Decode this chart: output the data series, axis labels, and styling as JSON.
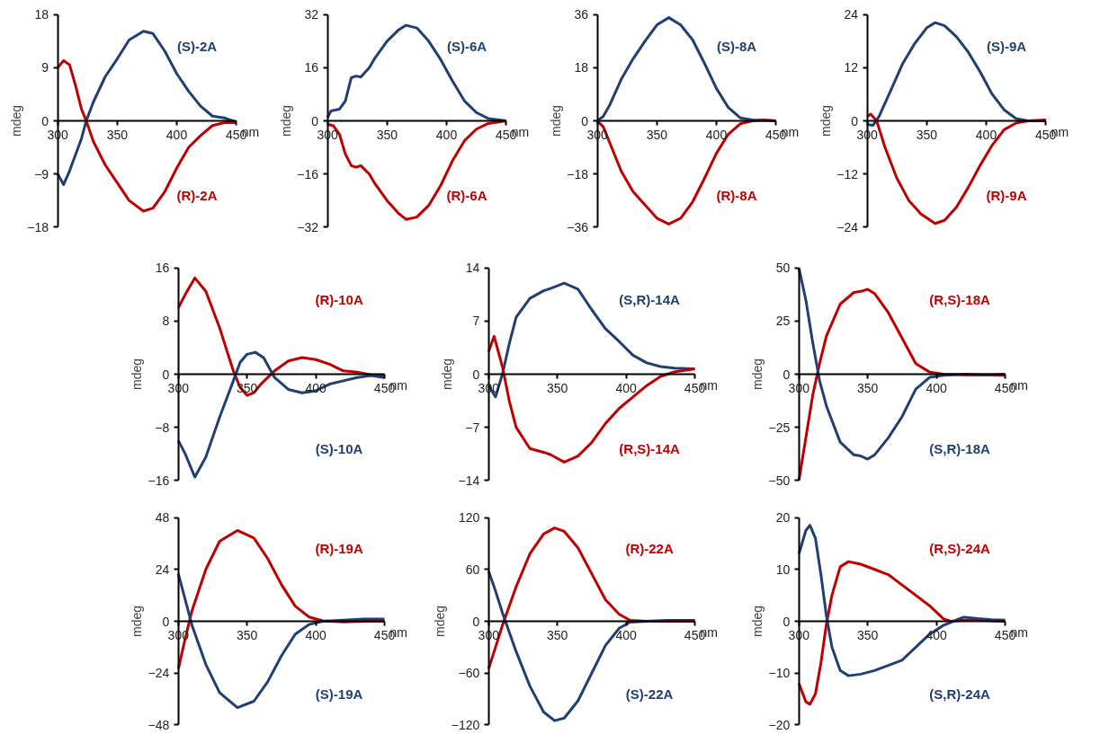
{
  "chart_data": [
    {
      "type": "line",
      "xlabel": "nm",
      "ylabel": "mdeg",
      "xlim": [
        300,
        450
      ],
      "xticks": [
        300,
        350,
        400,
        450
      ],
      "ylim": [
        -18,
        18
      ],
      "yticks": [
        -18,
        -9,
        0,
        9,
        18
      ],
      "series": [
        {
          "name": "(S)-2A",
          "color": "#203f73",
          "x": [
            300,
            305,
            310,
            320,
            324,
            330,
            340,
            350,
            360,
            372,
            380,
            390,
            400,
            410,
            420,
            430,
            440,
            450
          ],
          "values": [
            -9,
            -10.8,
            -8.5,
            -3,
            0,
            3.2,
            7.5,
            10.5,
            13.7,
            15.2,
            14.8,
            11.8,
            8,
            5,
            2.5,
            0.8,
            0.5,
            -0.2
          ]
        },
        {
          "name": "(R)-2A",
          "color": "#c00000",
          "x": [
            300,
            305,
            310,
            315,
            320,
            324,
            330,
            340,
            350,
            360,
            372,
            380,
            390,
            400,
            410,
            420,
            430,
            440,
            450
          ],
          "values": [
            9,
            10.2,
            9.5,
            6,
            2,
            0,
            -3.5,
            -7.5,
            -10.5,
            -13.5,
            -15.3,
            -14.8,
            -12,
            -8,
            -4.5,
            -2.5,
            -0.8,
            -0.3,
            -0.3
          ]
        }
      ]
    },
    {
      "type": "line",
      "xlabel": "nm",
      "ylabel": "mdeg",
      "xlim": [
        300,
        450
      ],
      "xticks": [
        300,
        350,
        400,
        450
      ],
      "ylim": [
        -32,
        32
      ],
      "yticks": [
        -32,
        -16,
        0,
        16,
        32
      ],
      "series": [
        {
          "name": "(S)-6A",
          "color": "#203f73",
          "x": [
            300,
            303,
            310,
            315,
            320,
            324,
            328,
            335,
            340,
            350,
            360,
            366,
            375,
            385,
            395,
            405,
            415,
            425,
            435,
            450
          ],
          "values": [
            1,
            3,
            3.5,
            6,
            13,
            13.5,
            13.2,
            16,
            19,
            24,
            27.5,
            28.8,
            28,
            24,
            18.5,
            12,
            6,
            2.5,
            0.7,
            0
          ]
        },
        {
          "name": "(R)-6A",
          "color": "#c00000",
          "x": [
            300,
            305,
            310,
            315,
            320,
            324,
            328,
            335,
            340,
            350,
            360,
            366,
            375,
            385,
            395,
            405,
            415,
            425,
            435,
            450
          ],
          "values": [
            -1,
            -1.5,
            -4,
            -10,
            -13.5,
            -14,
            -13.5,
            -16,
            -19,
            -24,
            -28,
            -29.7,
            -29,
            -25.5,
            -19.5,
            -12,
            -6,
            -2.5,
            -0.8,
            0
          ]
        }
      ]
    },
    {
      "type": "line",
      "xlabel": "nm",
      "ylabel": "mdeg",
      "xlim": [
        300,
        450
      ],
      "xticks": [
        300,
        350,
        400,
        450
      ],
      "ylim": [
        -36,
        36
      ],
      "yticks": [
        -36,
        -18,
        0,
        18,
        36
      ],
      "series": [
        {
          "name": "(S)-8A",
          "color": "#203f73",
          "x": [
            300,
            305,
            310,
            320,
            330,
            340,
            350,
            360,
            370,
            380,
            390,
            400,
            410,
            420,
            430,
            440,
            450
          ],
          "values": [
            0,
            1.5,
            5,
            14,
            21,
            27,
            32.5,
            35,
            32.5,
            27.5,
            19.5,
            11,
            4.5,
            1,
            0.3,
            0.2,
            0
          ]
        },
        {
          "name": "(R)-8A",
          "color": "#c00000",
          "x": [
            300,
            305,
            310,
            320,
            330,
            340,
            350,
            360,
            370,
            380,
            390,
            400,
            410,
            420,
            430,
            440,
            450
          ],
          "values": [
            0,
            -2,
            -7,
            -17,
            -24,
            -28.5,
            -33,
            -35,
            -33,
            -27.5,
            -19.5,
            -11,
            -4.5,
            -1,
            0,
            0.2,
            0
          ]
        }
      ]
    },
    {
      "type": "line",
      "xlabel": "nm",
      "ylabel": "mdeg",
      "xlim": [
        300,
        450
      ],
      "xticks": [
        300,
        350,
        400,
        450
      ],
      "ylim": [
        -24,
        24
      ],
      "yticks": [
        -24,
        -12,
        0,
        12,
        24
      ],
      "series": [
        {
          "name": "(S)-9A",
          "color": "#203f73",
          "x": [
            300,
            305,
            310,
            320,
            330,
            340,
            350,
            357,
            365,
            375,
            385,
            395,
            405,
            415,
            425,
            435,
            450
          ],
          "values": [
            -0.8,
            -1,
            1,
            7,
            13,
            17.5,
            21,
            22.2,
            21.5,
            19,
            15.5,
            11,
            6,
            2.5,
            0.5,
            0,
            0
          ]
        },
        {
          "name": "(R)-9A",
          "color": "#c00000",
          "x": [
            300,
            303,
            308,
            315,
            325,
            335,
            345,
            357,
            365,
            375,
            385,
            395,
            405,
            415,
            425,
            435,
            450
          ],
          "values": [
            1,
            1.5,
            0,
            -6,
            -13,
            -18,
            -21,
            -23.2,
            -22.5,
            -19.5,
            -15,
            -10,
            -5.5,
            -2,
            -0.5,
            0,
            0.2
          ]
        }
      ]
    },
    {
      "type": "line",
      "xlabel": "nm",
      "ylabel": "mdeg",
      "xlim": [
        300,
        450
      ],
      "xticks": [
        300,
        350,
        400,
        450
      ],
      "ylim": [
        -16,
        16
      ],
      "yticks": [
        -16,
        -8,
        0,
        8,
        16
      ],
      "series": [
        {
          "name": "(R)-10A",
          "color": "#c00000",
          "x": [
            300,
            305,
            312,
            320,
            330,
            340,
            345,
            350,
            355,
            360,
            370,
            380,
            390,
            400,
            410,
            420,
            430,
            440,
            450
          ],
          "values": [
            10,
            12,
            14.5,
            12.5,
            7,
            0.5,
            -2,
            -3.2,
            -2.8,
            -1.5,
            0.5,
            2,
            2.5,
            2.2,
            1.5,
            0.5,
            0.3,
            -0.1,
            -0.3
          ]
        },
        {
          "name": "(S)-10A",
          "color": "#203f73",
          "x": [
            300,
            305,
            312,
            320,
            330,
            340,
            345,
            350,
            356,
            362,
            370,
            380,
            390,
            400,
            410,
            420,
            430,
            440,
            450
          ],
          "values": [
            -10,
            -12,
            -15.5,
            -12.5,
            -6.5,
            -1,
            1.8,
            3,
            3.3,
            2.5,
            -0.5,
            -2.3,
            -2.8,
            -2.5,
            -1.5,
            -1,
            -0.5,
            -0.2,
            -0.5
          ]
        }
      ]
    },
    {
      "type": "line",
      "xlabel": "nm",
      "ylabel": "mdeg",
      "xlim": [
        300,
        450
      ],
      "xticks": [
        300,
        350,
        400,
        450
      ],
      "ylim": [
        -14,
        14
      ],
      "yticks": [
        -14,
        -7,
        0,
        7,
        14
      ],
      "series": [
        {
          "name": "(S,R)-14A",
          "color": "#203f73",
          "x": [
            300,
            305,
            310,
            315,
            320,
            330,
            340,
            345,
            355,
            365,
            375,
            385,
            395,
            405,
            415,
            425,
            435,
            450
          ],
          "values": [
            -1.5,
            -3,
            0,
            4,
            7.5,
            10,
            11,
            11.3,
            12,
            11.2,
            8.5,
            6,
            4.3,
            2.5,
            1.5,
            1,
            0.8,
            0.7
          ]
        },
        {
          "name": "(R,S)-14A",
          "color": "#c00000",
          "x": [
            300,
            304,
            310,
            315,
            320,
            330,
            340,
            345,
            355,
            365,
            375,
            385,
            395,
            405,
            415,
            425,
            435,
            450
          ],
          "values": [
            3,
            5,
            1,
            -3.5,
            -7,
            -9.8,
            -10.3,
            -10.6,
            -11.6,
            -10.8,
            -9,
            -6.5,
            -4.5,
            -3,
            -1.5,
            -0.3,
            0.3,
            0.7
          ]
        }
      ]
    },
    {
      "type": "line",
      "xlabel": "nm",
      "ylabel": "mdeg",
      "xlim": [
        300,
        450
      ],
      "xticks": [
        300,
        350,
        400,
        450
      ],
      "ylim": [
        -50,
        50
      ],
      "yticks": [
        -50,
        -25,
        0,
        25,
        50
      ],
      "series": [
        {
          "name": "(R,S)-18A",
          "color": "#c00000",
          "x": [
            300,
            305,
            310,
            315,
            320,
            330,
            340,
            345,
            350,
            355,
            365,
            375,
            385,
            395,
            405,
            420,
            435,
            450
          ],
          "values": [
            -50,
            -30,
            -10,
            5,
            18,
            33,
            38.5,
            39,
            40,
            38,
            29,
            17,
            5,
            1,
            0,
            -0.3,
            -0.3,
            -0.5
          ]
        },
        {
          "name": "(S,R)-18A",
          "color": "#203f73",
          "x": [
            300,
            305,
            310,
            315,
            320,
            330,
            340,
            345,
            350,
            355,
            365,
            375,
            385,
            395,
            405,
            420,
            435,
            450
          ],
          "values": [
            50,
            35,
            15,
            -3,
            -15,
            -32,
            -38,
            -38.5,
            -40,
            -38,
            -30,
            -20,
            -7,
            -1.5,
            -0.5,
            0,
            -0.3,
            0
          ]
        }
      ]
    },
    {
      "type": "line",
      "xlabel": "nm",
      "ylabel": "mdeg",
      "xlim": [
        300,
        450
      ],
      "xticks": [
        300,
        350,
        400,
        450
      ],
      "ylim": [
        -48,
        48
      ],
      "yticks": [
        -48,
        -24,
        0,
        24,
        48
      ],
      "series": [
        {
          "name": "(R)-19A",
          "color": "#c00000",
          "x": [
            300,
            305,
            310,
            320,
            330,
            343,
            355,
            365,
            375,
            385,
            395,
            405,
            420,
            435,
            450
          ],
          "values": [
            -22,
            -8,
            5,
            24,
            37,
            42,
            38.5,
            29,
            17,
            7,
            2,
            0.2,
            -0.3,
            0,
            0
          ]
        },
        {
          "name": "(S)-19A",
          "color": "#203f73",
          "x": [
            300,
            305,
            310,
            320,
            330,
            343,
            355,
            365,
            375,
            385,
            395,
            405,
            420,
            435,
            450
          ],
          "values": [
            22,
            10,
            -2,
            -20,
            -33,
            -40,
            -37,
            -28,
            -16,
            -6,
            -1.5,
            0,
            0.5,
            1,
            1
          ]
        }
      ]
    },
    {
      "type": "line",
      "xlabel": "nm",
      "ylabel": "mdeg",
      "xlim": [
        300,
        450
      ],
      "xticks": [
        300,
        350,
        400,
        450
      ],
      "ylim": [
        -120,
        120
      ],
      "yticks": [
        -120,
        -60,
        0,
        60,
        120
      ],
      "series": [
        {
          "name": "(R)-22A",
          "color": "#c00000",
          "x": [
            300,
            305,
            310,
            320,
            330,
            340,
            348,
            355,
            365,
            375,
            385,
            395,
            403,
            415,
            430,
            450
          ],
          "values": [
            -55,
            -30,
            -5,
            40,
            78,
            101,
            108,
            104,
            85,
            55,
            25,
            8,
            1,
            0,
            0,
            0
          ]
        },
        {
          "name": "(S)-22A",
          "color": "#203f73",
          "x": [
            300,
            305,
            310,
            320,
            330,
            340,
            348,
            355,
            365,
            375,
            385,
            395,
            403,
            415,
            430,
            450
          ],
          "values": [
            58,
            35,
            10,
            -35,
            -75,
            -105,
            -115,
            -112,
            -92,
            -60,
            -28,
            -8,
            -1,
            0,
            1,
            1
          ]
        }
      ]
    },
    {
      "type": "line",
      "xlabel": "nm",
      "ylabel": "mdeg",
      "xlim": [
        300,
        450
      ],
      "xticks": [
        300,
        350,
        400,
        450
      ],
      "ylim": [
        -20,
        20
      ],
      "yticks": [
        -20,
        -10,
        0,
        10,
        20
      ],
      "series": [
        {
          "name": "(R,S)-24A",
          "color": "#c00000",
          "x": [
            300,
            305,
            308,
            312,
            316,
            320,
            324,
            330,
            336,
            345,
            355,
            365,
            375,
            385,
            395,
            405,
            410,
            420,
            430,
            450
          ],
          "values": [
            -12,
            -15.5,
            -16,
            -14,
            -8,
            -0.5,
            5,
            10.5,
            11.5,
            11,
            10,
            9,
            7,
            5,
            3,
            0.5,
            0,
            0.2,
            0.2,
            0
          ]
        },
        {
          "name": "(S,R)-24A",
          "color": "#203f73",
          "x": [
            300,
            305,
            308,
            312,
            316,
            320,
            324,
            330,
            336,
            345,
            355,
            365,
            375,
            385,
            395,
            405,
            415,
            420,
            430,
            440,
            450
          ],
          "values": [
            13,
            17.5,
            18.5,
            16,
            9,
            1,
            -5,
            -9.5,
            -10.5,
            -10.2,
            -9.5,
            -8.5,
            -7.5,
            -5,
            -2.5,
            -0.8,
            0.3,
            0.8,
            0.5,
            0.3,
            0.2
          ]
        }
      ]
    }
  ]
}
